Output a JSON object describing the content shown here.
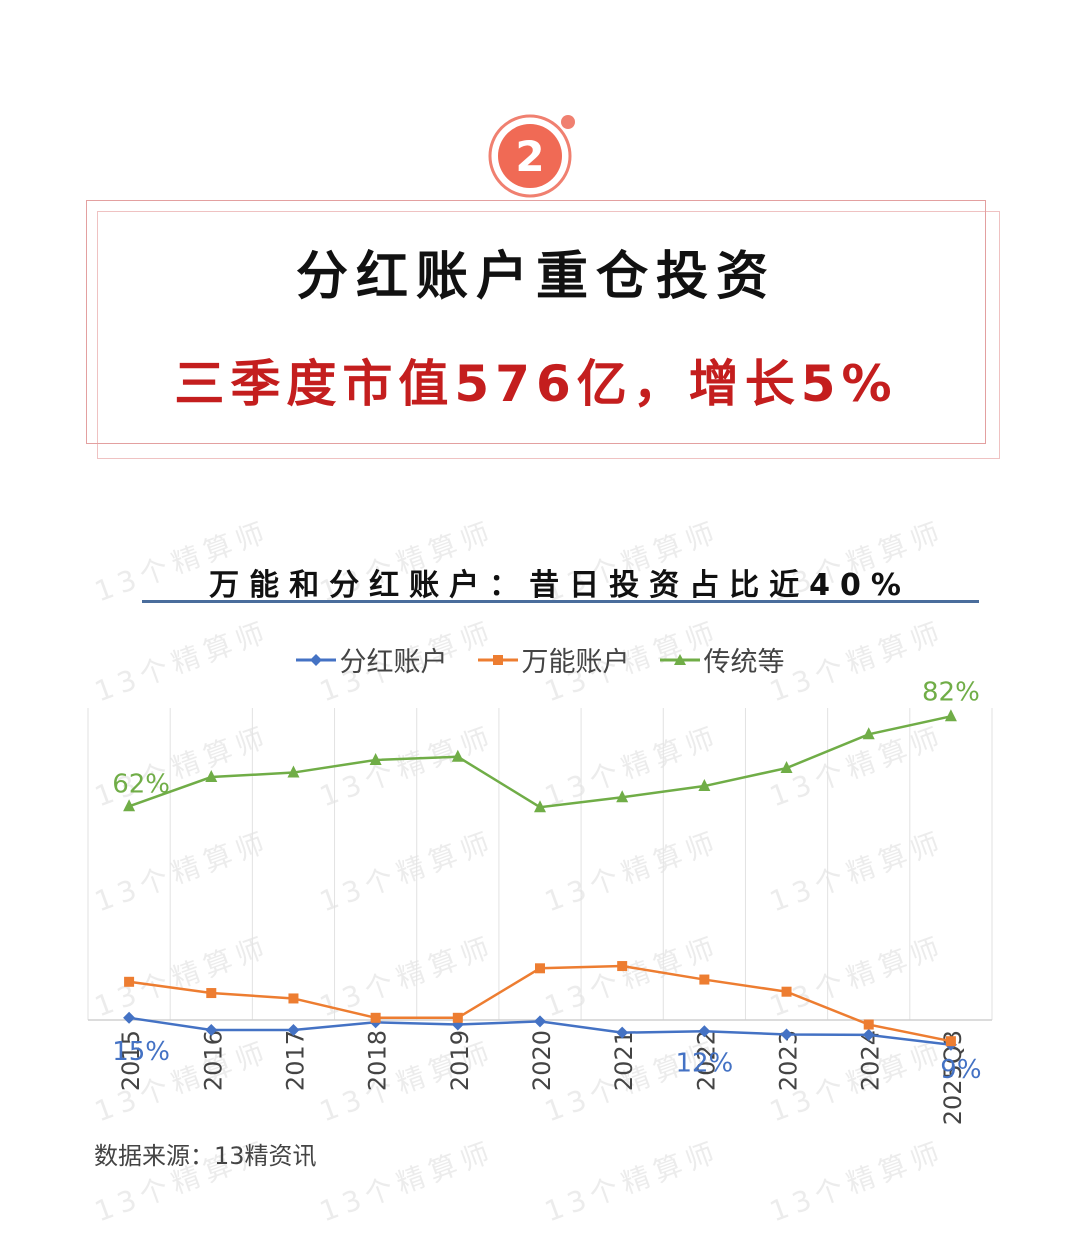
{
  "badge": {
    "number": "2"
  },
  "header": {
    "headline": "分红账户重仓投资",
    "subhead": "三季度市值576亿，增长5%"
  },
  "chart_data": {
    "type": "line",
    "title": "万能和分红账户：昔日投资占比近40%",
    "categories": [
      "2015",
      "2016",
      "2017",
      "2018",
      "2019",
      "2020",
      "2021",
      "2022",
      "2023",
      "2024",
      "2025Q3"
    ],
    "ylim": [
      0,
      90
    ],
    "grid": "vertical",
    "legend_position": "top",
    "series": [
      {
        "name": "分红账户",
        "color": "#4472c4",
        "marker": "diamond",
        "values": [
          15,
          12.3,
          12.3,
          14,
          13.5,
          14.2,
          11.7,
          12,
          11.3,
          11.2,
          9
        ]
      },
      {
        "name": "万能账户",
        "color": "#ed7d31",
        "marker": "square",
        "values": [
          23,
          20.5,
          19.3,
          15,
          15,
          26,
          26.5,
          23.5,
          20.8,
          13.5,
          9.8
        ]
      },
      {
        "name": "传统等",
        "color": "#70ad47",
        "marker": "triangle",
        "values": [
          62,
          68.5,
          69.5,
          72.3,
          73,
          61.8,
          64,
          66.5,
          70.5,
          78,
          82
        ]
      }
    ],
    "annotations": [
      {
        "series": 2,
        "index": 0,
        "label": "62%"
      },
      {
        "series": 2,
        "index": 10,
        "label": "82%"
      },
      {
        "series": 0,
        "index": 0,
        "label": "15%"
      },
      {
        "series": 0,
        "index": 7,
        "label": "12%"
      },
      {
        "series": 0,
        "index": 10,
        "label": "9%"
      }
    ]
  },
  "source": "数据来源：13精资讯",
  "watermark": "13个精算师"
}
